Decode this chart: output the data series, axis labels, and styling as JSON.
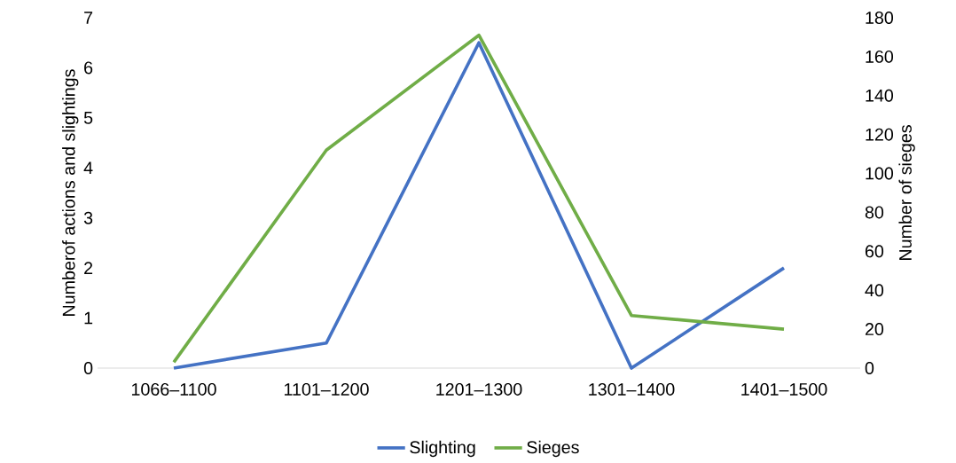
{
  "chart_data": {
    "type": "line",
    "ylabel": "Numberof actions and slightings",
    "y2label": "Number of sieges",
    "categories": [
      "1066–1100",
      "1101–1200",
      "1201–1300",
      "1301–1400",
      "1401–1500"
    ],
    "series": [
      {
        "name": "Slighting",
        "color": "#4472c4",
        "values": [
          0,
          0.5,
          6.5,
          0,
          2
        ]
      },
      {
        "name": "Sieges",
        "color": "#70ad47",
        "axis": "y2",
        "values": [
          3,
          112,
          171,
          27,
          20
        ]
      }
    ],
    "ylim": [
      0,
      7
    ],
    "yticks": [
      0,
      1,
      2,
      3,
      4,
      5,
      6,
      7
    ],
    "y2lim": [
      0,
      180
    ],
    "y2ticks": [
      0,
      20,
      40,
      60,
      80,
      100,
      120,
      140,
      160,
      180
    ],
    "grid": false,
    "legend": "bottom",
    "marker": "none",
    "line_style": "solid"
  }
}
